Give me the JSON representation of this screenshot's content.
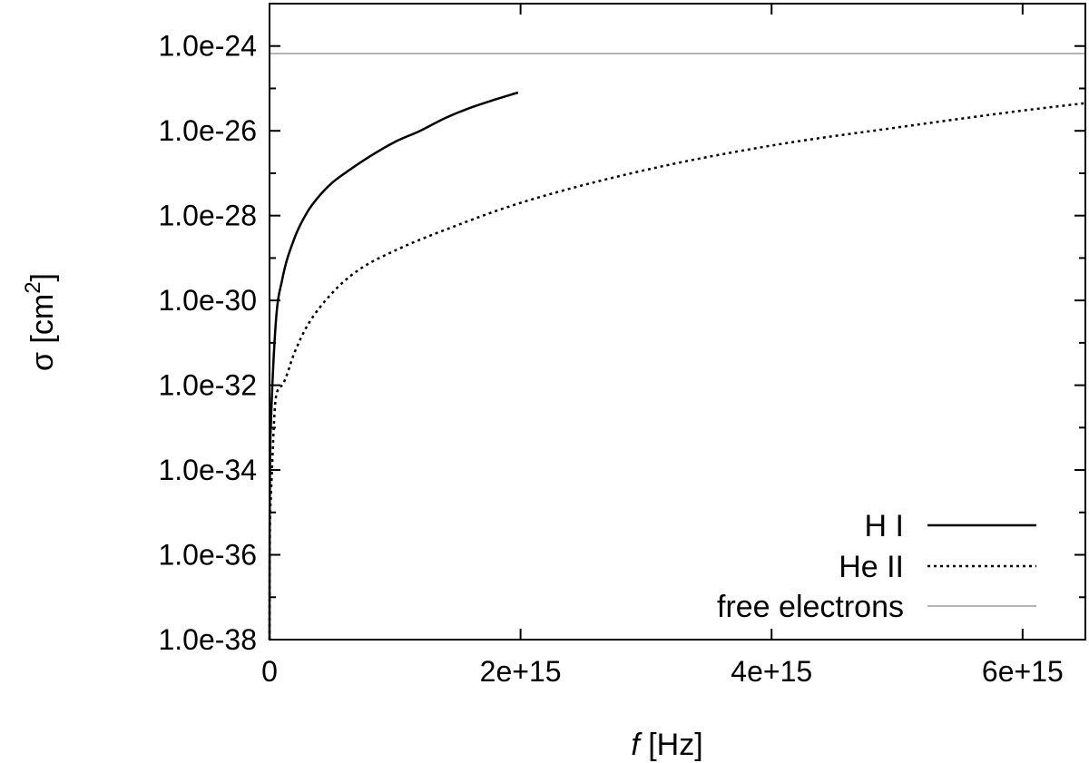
{
  "chart_data": {
    "type": "line",
    "xlabel_italic": "f",
    "xlabel_unit": "[Hz]",
    "ylabel_symbol": "σ",
    "ylabel_unit_open": "[cm",
    "ylabel_unit_sup": "2",
    "ylabel_unit_close": "]",
    "xlim": [
      0,
      6500000000000000.0
    ],
    "ylim": [
      1e-38,
      1e-23
    ],
    "yscale": "log",
    "xticks": [
      {
        "value": 0,
        "label": "0"
      },
      {
        "value": 2000000000000000.0,
        "label": "2e+15"
      },
      {
        "value": 4000000000000000.0,
        "label": "4e+15"
      },
      {
        "value": 6000000000000000.0,
        "label": "6e+15"
      }
    ],
    "yticks": [
      {
        "value": 1e-38,
        "label": "1.0e-38"
      },
      {
        "value": 1e-36,
        "label": "1.0e-36"
      },
      {
        "value": 1e-34,
        "label": "1.0e-34"
      },
      {
        "value": 1e-32,
        "label": "1.0e-32"
      },
      {
        "value": 1e-30,
        "label": "1.0e-30"
      },
      {
        "value": 1e-28,
        "label": "1.0e-28"
      },
      {
        "value": 1e-26,
        "label": "1.0e-26"
      },
      {
        "value": 1e-24,
        "label": "1.0e-24"
      }
    ],
    "grid": false,
    "legend_position": "bottom-right",
    "series": [
      {
        "name": "H I",
        "style": "solid",
        "color": "#000000",
        "x": [
          0,
          1000000000000.0,
          10000000000000.0,
          50000000000000.0,
          100000000000000.0,
          200000000000000.0,
          300000000000000.0,
          400000000000000.0,
          500000000000000.0,
          600000000000000.0,
          800000000000000.0,
          1000000000000000.0,
          1200000000000000.0,
          1400000000000000.0,
          1600000000000000.0,
          1800000000000000.0,
          1980000000000000.0
        ],
        "y": [
          1e-38,
          4e-36,
          1e-33,
          3e-31,
          3e-30,
          3e-29,
          1.2e-28,
          3e-28,
          6e-28,
          1e-27,
          2.5e-27,
          5.5e-27,
          1e-26,
          2e-26,
          3.5e-26,
          5.5e-26,
          8e-26
        ]
      },
      {
        "name": "He II",
        "style": "dotted",
        "color": "#000000",
        "x": [
          0,
          1000000000000.0,
          10000000000000.0,
          50000000000000.0,
          100000000000000.0,
          200000000000000.0,
          300000000000000.0,
          500000000000000.0,
          700000000000000.0,
          1000000000000000.0,
          1500000000000000.0,
          2000000000000000.0,
          3000000000000000.0,
          4000000000000000.0,
          5000000000000000.0,
          6000000000000000.0,
          6500000000000000.0
        ],
        "y": [
          1e-38,
          5e-37,
          2e-35,
          5e-33,
          1e-32,
          6e-32,
          2.5e-31,
          1.5e-30,
          5e-30,
          1.5e-29,
          6e-29,
          2e-28,
          1.2e-27,
          4.5e-27,
          1.2e-26,
          3e-26,
          4.5e-26
        ]
      },
      {
        "name": "free electrons",
        "style": "solid",
        "color": "#b4b4b4",
        "x": [
          0,
          6500000000000000.0
        ],
        "y": [
          6.65e-25,
          6.65e-25
        ]
      }
    ]
  }
}
